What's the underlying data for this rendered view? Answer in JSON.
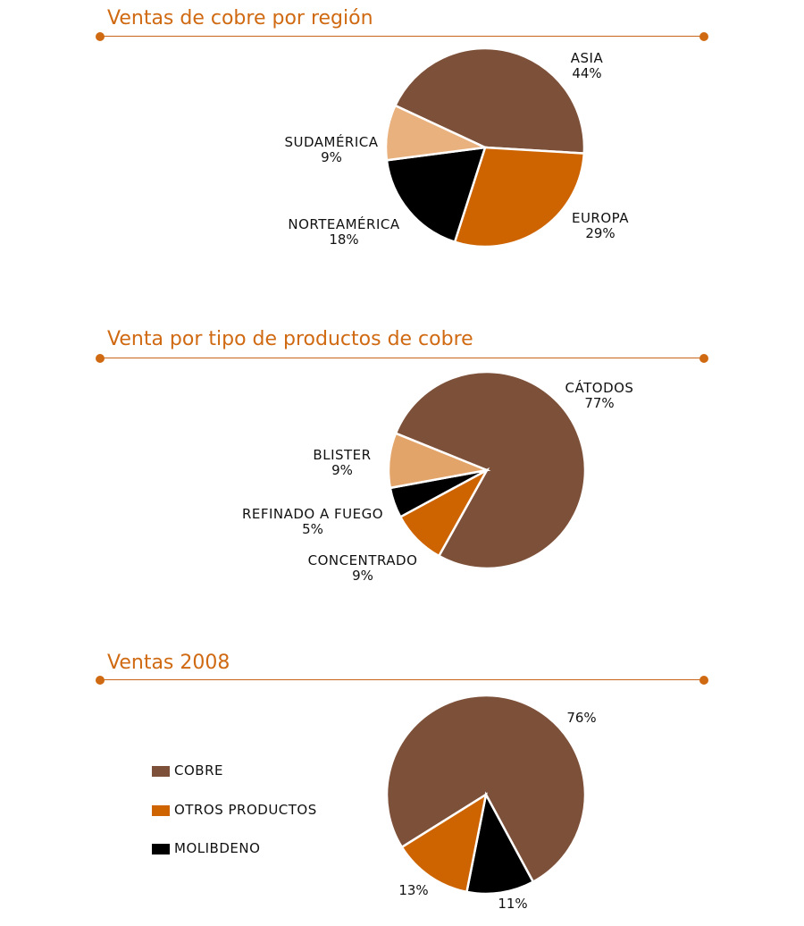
{
  "colors": {
    "accent": "#d06a12",
    "brown": "#7d5039",
    "orange": "#cd6400",
    "black": "#000000",
    "tan": "#e9b17e",
    "tan2": "#e3a46a"
  },
  "chart_data": [
    {
      "type": "pie",
      "title": "Ventas de cobre por región",
      "slices": [
        {
          "name": "ASIA",
          "value": 44,
          "label": "44%",
          "color": "#7d5039"
        },
        {
          "name": "EUROPA",
          "value": 29,
          "label": "29%",
          "color": "#cd6400"
        },
        {
          "name": "NORTEAMÉRICA",
          "value": 18,
          "label": "18%",
          "color": "#000000"
        },
        {
          "name": "SUDAMÉRICA",
          "value": 9,
          "label": "9%",
          "color": "#e9b17e"
        }
      ]
    },
    {
      "type": "pie",
      "title": "Venta por tipo de productos de cobre",
      "slices": [
        {
          "name": "CÁTODOS",
          "value": 77,
          "label": "77%",
          "color": "#7d5039"
        },
        {
          "name": "CONCENTRADO",
          "value": 9,
          "label": "9%",
          "color": "#cd6400"
        },
        {
          "name": "REFINADO A FUEGO",
          "value": 5,
          "label": "5%",
          "color": "#000000"
        },
        {
          "name": "BLISTER",
          "value": 9,
          "label": "9%",
          "color": "#e3a46a"
        }
      ]
    },
    {
      "type": "pie",
      "title": "Ventas 2008",
      "slices": [
        {
          "name": "COBRE",
          "value": 76,
          "label": "76%",
          "color": "#7d5039"
        },
        {
          "name": "MOLIBDENO",
          "value": 11,
          "label": "11%",
          "color": "#000000"
        },
        {
          "name": "OTROS PRODUCTOS",
          "value": 13,
          "label": "13%",
          "color": "#cd6400"
        }
      ],
      "legend": [
        "COBRE",
        "OTROS PRODUCTOS",
        "MOLIBDENO"
      ]
    }
  ]
}
